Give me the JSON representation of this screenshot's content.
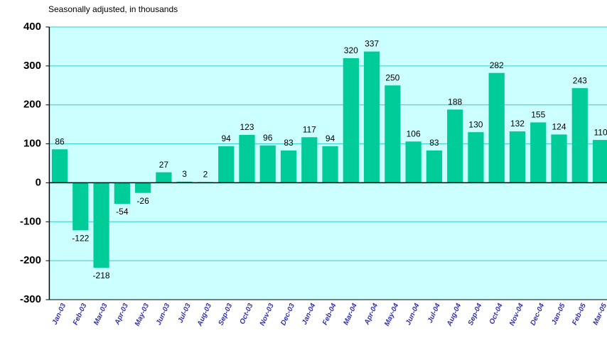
{
  "chart_data": {
    "type": "bar",
    "subtitle": "Seasonally adjusted, in thousands",
    "categories": [
      "Jan-03",
      "Feb-03",
      "Mar-03",
      "Apr-03",
      "May-03",
      "Jun-03",
      "Jul-03",
      "Aug-03",
      "Sep-03",
      "Oct-03",
      "Nov-03",
      "Dec-03",
      "Jan-04",
      "Feb-04",
      "Mar-04",
      "Apr-04",
      "May-04",
      "Jun-04",
      "Jul-04",
      "Aug-04",
      "Sep-04",
      "Oct-04",
      "Nov-04",
      "Dec-04",
      "Jan-05",
      "Feb-05",
      "Mar-05"
    ],
    "values": [
      86,
      -122,
      -218,
      -54,
      -26,
      27,
      3,
      2,
      94,
      123,
      96,
      83,
      117,
      94,
      320,
      337,
      250,
      106,
      83,
      188,
      130,
      282,
      132,
      155,
      124,
      243,
      110
    ],
    "color": "#00cc99",
    "ylim": [
      -300,
      400
    ],
    "yticks": [
      -300,
      -200,
      -100,
      0,
      100,
      200,
      300,
      400
    ],
    "grid": true
  }
}
